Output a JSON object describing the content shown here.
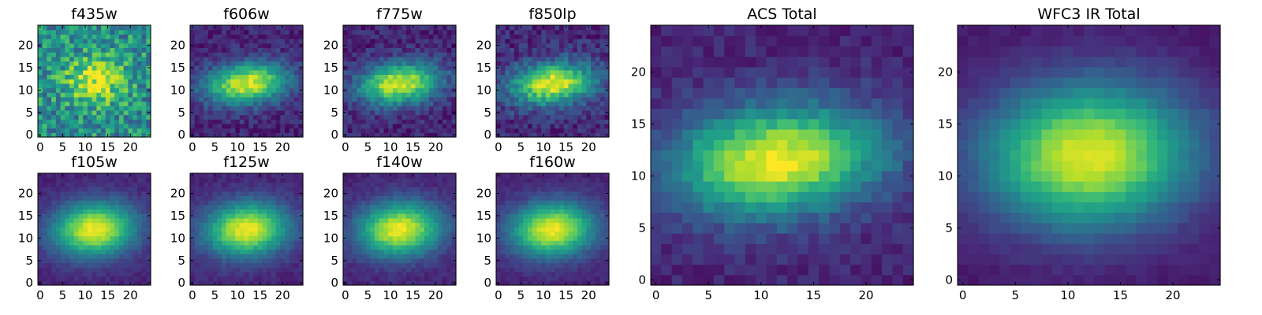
{
  "figure": {
    "type": "heatmap",
    "colormap": "viridis",
    "colormap_stops": [
      "#440154",
      "#482878",
      "#3e4989",
      "#31688e",
      "#26828e",
      "#1f9e89",
      "#35b779",
      "#6ece58",
      "#b5de2b",
      "#fde725"
    ]
  },
  "chart_data": [
    {
      "type": "heatmap",
      "title": "f435w",
      "size": 25,
      "x_ticks": [
        "0",
        "5",
        "10",
        "15",
        "20"
      ],
      "y_ticks": [
        "0",
        "5",
        "10",
        "15",
        "20"
      ],
      "source": {
        "cx": 12,
        "cy": 12,
        "sx": 4.5,
        "sy": 3.5,
        "tilt": 0.0,
        "peak": 0.45,
        "bg": 0.5,
        "noise": 0.45
      }
    },
    {
      "type": "heatmap",
      "title": "f606w",
      "size": 25,
      "x_ticks": [
        "0",
        "5",
        "10",
        "15",
        "20"
      ],
      "y_ticks": [
        "0",
        "5",
        "10",
        "15",
        "20"
      ],
      "source": {
        "cx": 12,
        "cy": 11.5,
        "sx": 6.5,
        "sy": 3.2,
        "tilt": 0.12,
        "peak": 0.85,
        "bg": 0.1,
        "noise": 0.18
      }
    },
    {
      "type": "heatmap",
      "title": "f775w",
      "size": 25,
      "x_ticks": [
        "0",
        "5",
        "10",
        "15",
        "20"
      ],
      "y_ticks": [
        "0",
        "5",
        "10",
        "15",
        "20"
      ],
      "source": {
        "cx": 12,
        "cy": 11.5,
        "sx": 6.5,
        "sy": 3.2,
        "tilt": 0.12,
        "peak": 0.85,
        "bg": 0.1,
        "noise": 0.2
      }
    },
    {
      "type": "heatmap",
      "title": "f850lp",
      "size": 25,
      "x_ticks": [
        "0",
        "5",
        "10",
        "15",
        "20"
      ],
      "y_ticks": [
        "0",
        "5",
        "10",
        "15",
        "20"
      ],
      "source": {
        "cx": 12,
        "cy": 11.5,
        "sx": 6.5,
        "sy": 3.2,
        "tilt": 0.12,
        "peak": 0.85,
        "bg": 0.12,
        "noise": 0.22
      }
    },
    {
      "type": "heatmap",
      "title": "f105w",
      "size": 25,
      "x_ticks": [
        "0",
        "5",
        "10",
        "15",
        "20"
      ],
      "y_ticks": [
        "0",
        "5",
        "10",
        "15",
        "20"
      ],
      "source": {
        "cx": 12,
        "cy": 12,
        "sx": 6.5,
        "sy": 4.2,
        "tilt": 0.08,
        "peak": 0.88,
        "bg": 0.1,
        "noise": 0.08
      }
    },
    {
      "type": "heatmap",
      "title": "f125w",
      "size": 25,
      "x_ticks": [
        "0",
        "5",
        "10",
        "15",
        "20"
      ],
      "y_ticks": [
        "0",
        "5",
        "10",
        "15",
        "20"
      ],
      "source": {
        "cx": 12,
        "cy": 12,
        "sx": 6.5,
        "sy": 4.2,
        "tilt": 0.08,
        "peak": 0.88,
        "bg": 0.1,
        "noise": 0.09
      }
    },
    {
      "type": "heatmap",
      "title": "f140w",
      "size": 25,
      "x_ticks": [
        "0",
        "5",
        "10",
        "15",
        "20"
      ],
      "y_ticks": [
        "0",
        "5",
        "10",
        "15",
        "20"
      ],
      "source": {
        "cx": 12,
        "cy": 12,
        "sx": 6.5,
        "sy": 4.2,
        "tilt": 0.08,
        "peak": 0.88,
        "bg": 0.1,
        "noise": 0.09
      }
    },
    {
      "type": "heatmap",
      "title": "f160w",
      "size": 25,
      "x_ticks": [
        "0",
        "5",
        "10",
        "15",
        "20"
      ],
      "y_ticks": [
        "0",
        "5",
        "10",
        "15",
        "20"
      ],
      "source": {
        "cx": 12,
        "cy": 12,
        "sx": 6.5,
        "sy": 4.2,
        "tilt": 0.08,
        "peak": 0.88,
        "bg": 0.1,
        "noise": 0.08
      }
    },
    {
      "type": "heatmap",
      "title": "ACS Total",
      "size": 25,
      "x_ticks": [
        "0",
        "5",
        "10",
        "15",
        "20"
      ],
      "y_ticks": [
        "0",
        "5",
        "10",
        "15",
        "20"
      ],
      "source": {
        "cx": 11.5,
        "cy": 11.5,
        "sx": 7.0,
        "sy": 3.6,
        "tilt": 0.1,
        "peak": 0.88,
        "bg": 0.1,
        "noise": 0.13
      }
    },
    {
      "type": "heatmap",
      "title": "WFC3 IR Total",
      "size": 25,
      "x_ticks": [
        "0",
        "5",
        "10",
        "15",
        "20"
      ],
      "y_ticks": [
        "0",
        "5",
        "10",
        "15",
        "20"
      ],
      "source": {
        "cx": 12,
        "cy": 12,
        "sx": 7.0,
        "sy": 4.8,
        "tilt": 0.05,
        "peak": 0.9,
        "bg": 0.06,
        "noise": 0.05
      }
    }
  ]
}
